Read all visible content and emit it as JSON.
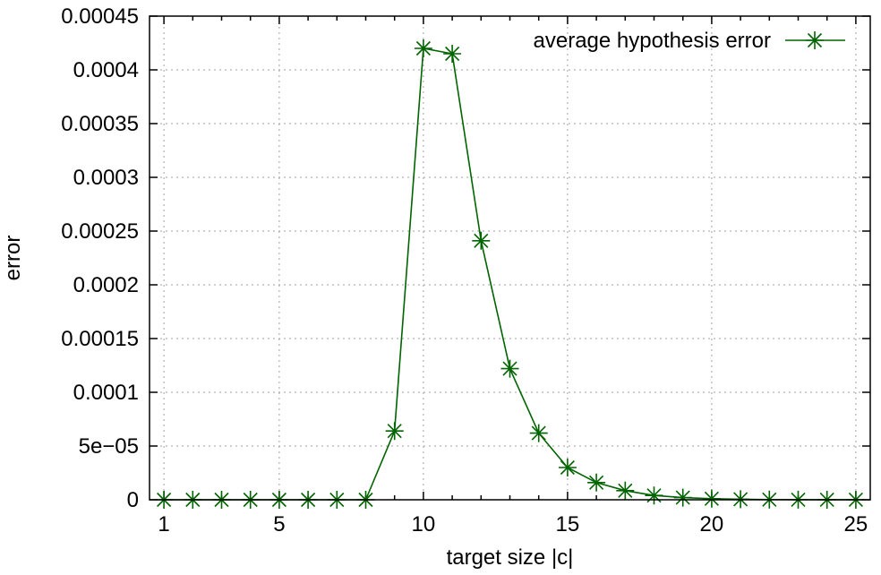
{
  "chart_data": {
    "type": "line",
    "title": "",
    "xlabel": "target size |c|",
    "ylabel": "error",
    "xlim": [
      0.5,
      25.5
    ],
    "ylim": [
      0,
      0.00045
    ],
    "x_ticks": [
      1,
      5,
      10,
      15,
      20,
      25
    ],
    "x_tick_labels": [
      "1",
      "5",
      "10",
      "15",
      "20",
      "25"
    ],
    "y_ticks": [
      0,
      5e-05,
      0.0001,
      0.00015,
      0.0002,
      0.00025,
      0.0003,
      0.00035,
      0.0004,
      0.00045
    ],
    "y_tick_labels": [
      "0",
      "5e−05",
      "0.0001",
      "0.00015",
      "0.0002",
      "0.00025",
      "0.0003",
      "0.00035",
      "0.0004",
      "0.00045"
    ],
    "grid": true,
    "legend_position": "top-right",
    "series": [
      {
        "name": "average hypothesis error",
        "color": "#006400",
        "marker": "asterisk",
        "x": [
          1,
          2,
          3,
          4,
          5,
          6,
          7,
          8,
          9,
          10,
          11,
          12,
          13,
          14,
          15,
          16,
          17,
          18,
          19,
          20,
          21,
          22,
          23,
          24,
          25
        ],
        "y": [
          0,
          0,
          0,
          0,
          0,
          0,
          0,
          0,
          6.4e-05,
          0.00042,
          0.000415,
          0.000241,
          0.000122,
          6.2e-05,
          3e-05,
          1.6e-05,
          8.5e-06,
          4e-06,
          2e-06,
          1e-06,
          5e-07,
          2e-07,
          1e-07,
          5e-08,
          2e-08
        ]
      }
    ]
  }
}
